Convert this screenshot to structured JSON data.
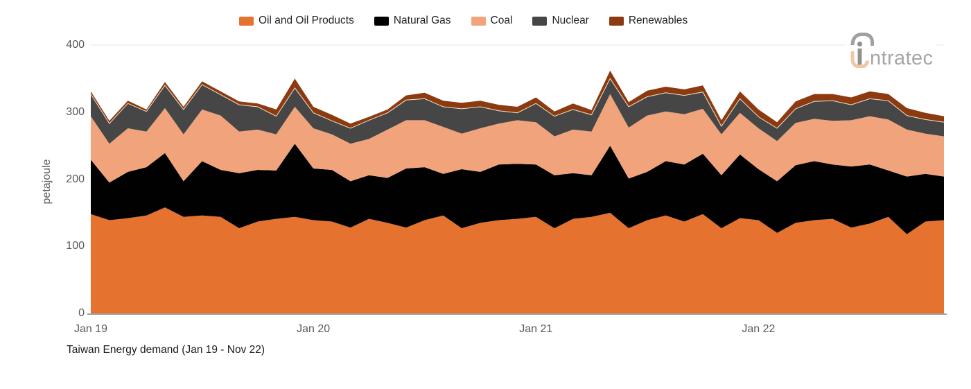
{
  "logo": {
    "brand": "intratec",
    "wordmark_rest": "ntratec",
    "gray": "#A0A0A0",
    "peach": "#EFC7A3"
  },
  "chart_data": {
    "type": "area",
    "subtype": "stacked",
    "title": "Taiwan Energy demand (Jan 19 - Nov 22)",
    "xlabel": "",
    "ylabel": "petajoule",
    "ylim": [
      0,
      400
    ],
    "y_ticks": [
      0,
      100,
      200,
      300,
      400
    ],
    "x_ticks": [
      {
        "label": "Jan 19",
        "month_index": 0
      },
      {
        "label": "Jan 20",
        "month_index": 12
      },
      {
        "label": "Jan 21",
        "month_index": 24
      },
      {
        "label": "Jan 22",
        "month_index": 36
      }
    ],
    "grid": "top-gridline-only",
    "legend_position": "top-center",
    "months": [
      "Jan 19",
      "Feb 19",
      "Mar 19",
      "Apr 19",
      "May 19",
      "Jun 19",
      "Jul 19",
      "Aug 19",
      "Sep 19",
      "Oct 19",
      "Nov 19",
      "Dec 19",
      "Jan 20",
      "Feb 20",
      "Mar 20",
      "Apr 20",
      "May 20",
      "Jun 20",
      "Jul 20",
      "Aug 20",
      "Sep 20",
      "Oct 20",
      "Nov 20",
      "Dec 20",
      "Jan 21",
      "Feb 21",
      "Mar 21",
      "Apr 21",
      "May 21",
      "Jun 21",
      "Jul 21",
      "Aug 21",
      "Sep 21",
      "Oct 21",
      "Nov 21",
      "Dec 21",
      "Jan 22",
      "Feb 22",
      "Mar 22",
      "Apr 22",
      "May 22",
      "Jun 22",
      "Jul 22",
      "Aug 22",
      "Sep 22",
      "Oct 22",
      "Nov 22"
    ],
    "series": [
      {
        "name": "Oil and Oil Products",
        "color": "#E5722F",
        "values": [
          148,
          139,
          142,
          146,
          158,
          144,
          146,
          144,
          127,
          137,
          141,
          144,
          139,
          137,
          128,
          141,
          135,
          128,
          139,
          146,
          127,
          135,
          139,
          141,
          144,
          127,
          141,
          144,
          150,
          127,
          139,
          146,
          137,
          148,
          127,
          142,
          139,
          120,
          135,
          139,
          141,
          128,
          134,
          144,
          118,
          137,
          139
        ]
      },
      {
        "name": "Natural Gas",
        "color": "#010101",
        "values": [
          81,
          56,
          69,
          72,
          81,
          53,
          81,
          70,
          82,
          77,
          72,
          109,
          77,
          77,
          69,
          65,
          67,
          88,
          79,
          62,
          88,
          76,
          83,
          82,
          78,
          79,
          68,
          62,
          100,
          74,
          72,
          81,
          85,
          90,
          79,
          95,
          76,
          77,
          86,
          88,
          81,
          91,
          88,
          69,
          86,
          71,
          65
        ]
      },
      {
        "name": "Coal",
        "color": "#F1A47C",
        "values": [
          65,
          58,
          65,
          53,
          67,
          70,
          77,
          81,
          62,
          60,
          54,
          55,
          60,
          53,
          56,
          54,
          72,
          72,
          70,
          70,
          53,
          65,
          61,
          65,
          63,
          58,
          65,
          65,
          77,
          76,
          84,
          74,
          75,
          67,
          61,
          62,
          61,
          60,
          63,
          63,
          65,
          69,
          72,
          76,
          70,
          60,
          60
        ]
      },
      {
        "name": "Nuclear",
        "color": "#464646",
        "values": [
          33,
          30,
          37,
          30,
          34,
          37,
          37,
          31,
          40,
          34,
          27,
          28,
          23,
          20,
          23,
          28,
          25,
          30,
          32,
          30,
          37,
          32,
          19,
          11,
          28,
          30,
          30,
          25,
          23,
          31,
          28,
          28,
          28,
          25,
          12,
          21,
          17,
          19,
          21,
          26,
          30,
          23,
          26,
          28,
          21,
          21,
          21
        ]
      },
      {
        "name": "Renewables",
        "color": "#8C3A10",
        "values": [
          4,
          4,
          4,
          3,
          5,
          4,
          5,
          5,
          5,
          5,
          10,
          14,
          9,
          9,
          7,
          5,
          5,
          7,
          9,
          9,
          9,
          9,
          9,
          9,
          9,
          7,
          9,
          7,
          12,
          7,
          9,
          9,
          9,
          10,
          9,
          11,
          11,
          9,
          11,
          11,
          10,
          11,
          11,
          10,
          11,
          10,
          9
        ]
      }
    ],
    "colors": {
      "axis_line": "#A3A3A3",
      "gridline": "#E4E4E4",
      "tick_text": "#595959",
      "band_separator": "#F3E3CD"
    }
  }
}
